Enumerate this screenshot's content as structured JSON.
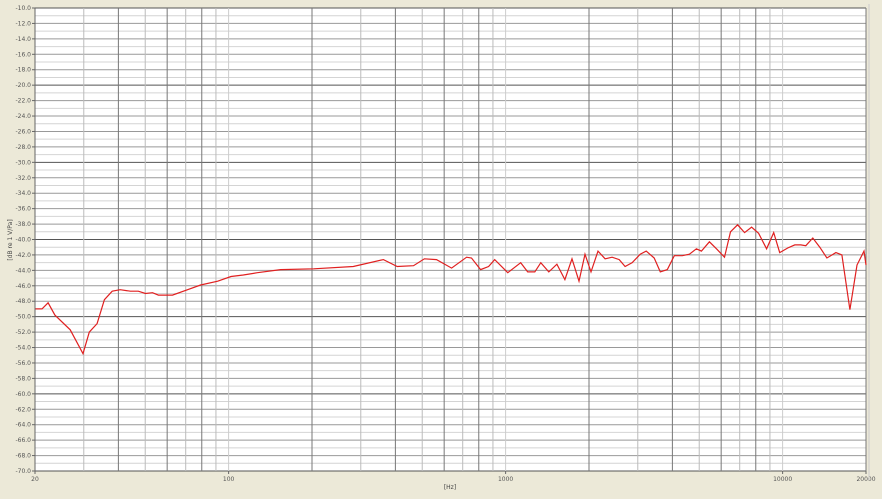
{
  "chart_data": {
    "type": "line",
    "title": "",
    "xlabel": "[Hz]",
    "ylabel": "[dB re 1 V/Pa]",
    "xscale": "log",
    "xlim": [
      20,
      20000
    ],
    "ylim": [
      -70,
      -10
    ],
    "grid": true,
    "x_tick_labels": [
      "20",
      "100",
      "1000",
      "10000",
      "20000"
    ],
    "x_ticks": [
      20,
      100,
      1000,
      10000,
      20000
    ],
    "y_ticks": [
      -10,
      -12,
      -14,
      -16,
      -18,
      -20,
      -22,
      -24,
      -26,
      -28,
      -30,
      -32,
      -34,
      -36,
      -38,
      -40,
      -42,
      -44,
      -46,
      -48,
      -50,
      -52,
      -54,
      -56,
      -58,
      -60,
      -62,
      -64,
      -66,
      -68,
      -70
    ],
    "line_color": "#e02020",
    "series": [
      {
        "x": [
          20,
          21.2,
          22.3,
          23.6,
          26.8,
          29.8,
          31.4,
          33.5,
          35.6,
          38,
          40.6,
          44.2,
          47.2,
          50.1,
          53.1,
          55.8,
          62.7,
          71.1,
          79.2,
          91.3,
          102,
          113,
          127,
          154,
          203,
          282,
          362,
          406,
          465,
          509,
          563,
          638,
          723,
          753,
          812,
          868,
          913,
          1018,
          1134,
          1202,
          1275,
          1340,
          1432,
          1531,
          1637,
          1736,
          1840,
          1934,
          2033,
          2156,
          2286,
          2424,
          2570,
          2700,
          2863,
          3061,
          3218,
          3440,
          3617,
          3835,
          4064,
          4345,
          4607,
          4884,
          5092,
          5443,
          5770,
          6168,
          6486,
          6878,
          7291,
          7727,
          8193,
          8756,
          9284,
          9760,
          10435,
          11062,
          11630,
          12126,
          12853,
          13627,
          14446,
          15572,
          16370,
          17500,
          18554,
          19670,
          20000
        ],
        "y": [
          -49.0,
          -49.0,
          -48.2,
          -49.8,
          -51.7,
          -54.8,
          -52.0,
          -50.9,
          -47.8,
          -46.7,
          -46.5,
          -46.7,
          -46.7,
          -47.0,
          -46.9,
          -47.2,
          -47.2,
          -46.5,
          -45.9,
          -45.4,
          -44.8,
          -44.6,
          -44.3,
          -43.9,
          -43.8,
          -43.5,
          -42.6,
          -43.5,
          -43.4,
          -42.5,
          -42.6,
          -43.7,
          -42.3,
          -42.4,
          -43.9,
          -43.5,
          -42.6,
          -44.3,
          -43.0,
          -44.2,
          -44.2,
          -43.0,
          -44.2,
          -43.2,
          -45.2,
          -42.5,
          -45.4,
          -41.9,
          -44.2,
          -41.5,
          -42.5,
          -42.3,
          -42.6,
          -43.5,
          -43.0,
          -41.9,
          -41.5,
          -42.4,
          -44.2,
          -43.9,
          -42.1,
          -42.1,
          -41.9,
          -41.2,
          -41.5,
          -40.3,
          -41.2,
          -42.3,
          -39.0,
          -38.1,
          -39.1,
          -38.4,
          -39.2,
          -41.2,
          -39.1,
          -41.7,
          -41.1,
          -40.7,
          -40.7,
          -40.8,
          -39.8,
          -41.0,
          -42.4,
          -41.7,
          -42.0,
          -49.1,
          -43.3,
          -41.5,
          -43.3
        ]
      }
    ]
  }
}
